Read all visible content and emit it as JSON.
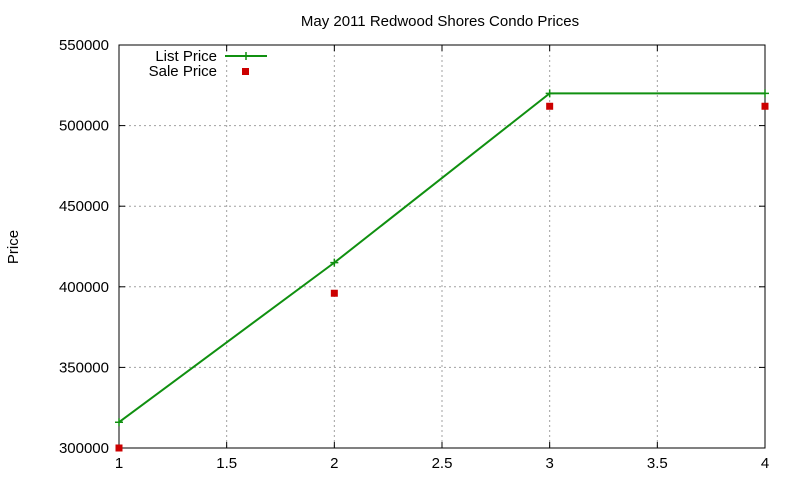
{
  "chart_data": {
    "type": "line",
    "title": "May 2011 Redwood Shores Condo Prices",
    "xlabel": "",
    "ylabel": "Price",
    "xlim": [
      1,
      4
    ],
    "ylim": [
      300000,
      550000
    ],
    "x_ticks": [
      "1",
      "1.5",
      "2",
      "2.5",
      "3",
      "3.5",
      "4"
    ],
    "y_ticks": [
      "300000",
      "350000",
      "400000",
      "450000",
      "500000",
      "550000"
    ],
    "grid": true,
    "legend_position": "top-left",
    "series": [
      {
        "name": "List Price",
        "style": "lines+points",
        "marker": "plus",
        "color": "#109010",
        "points": [
          [
            1,
            316000
          ],
          [
            2,
            415000
          ],
          [
            3,
            520000
          ],
          [
            4,
            520000
          ]
        ]
      },
      {
        "name": "Sale Price",
        "style": "points",
        "marker": "square",
        "color": "#cc0000",
        "points": [
          [
            1,
            300000
          ],
          [
            2,
            396000
          ],
          [
            3,
            512000
          ],
          [
            4,
            512000
          ]
        ]
      }
    ]
  }
}
